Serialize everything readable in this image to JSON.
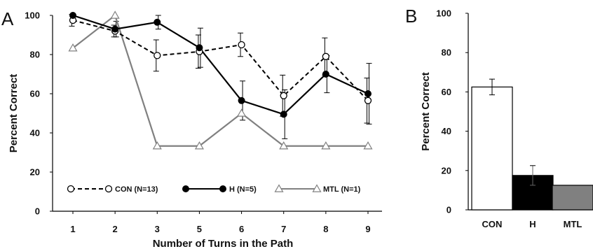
{
  "chart_data": [
    {
      "panel": "A",
      "type": "line",
      "xlabel": "Number of Turns in the Path",
      "ylabel": "Percent Correct",
      "categories": [
        "1",
        "2",
        "3",
        "5",
        "6",
        "7",
        "8",
        "9"
      ],
      "ylim": [
        0,
        100
      ],
      "yticks": [
        0,
        20,
        40,
        60,
        80,
        100
      ],
      "grid": false,
      "legend_position": "bottom",
      "series": [
        {
          "name": "CON (N=13)",
          "style": "dashed",
          "marker": "open-circle",
          "color": "#000000",
          "values": [
            97.5,
            92,
            79.5,
            81.5,
            85,
            59,
            79,
            56.5
          ],
          "errors": [
            3,
            3,
            8,
            8.5,
            6,
            10.5,
            9.5,
            11.5
          ]
        },
        {
          "name": "H (N=5)",
          "style": "solid",
          "marker": "filled-circle",
          "color": "#000000",
          "values": [
            100,
            93,
            96.5,
            83.5,
            56.5,
            49.5,
            70,
            60
          ],
          "errors": [
            0,
            4,
            3.5,
            10,
            10,
            12.5,
            9.5,
            15.5
          ]
        },
        {
          "name": "MTL (N=1)",
          "style": "solid",
          "marker": "open-triangle",
          "color": "#808080",
          "values": [
            83.3,
            100,
            33.3,
            33.3,
            50,
            33.3,
            33.3,
            33.3
          ],
          "errors": null
        }
      ]
    },
    {
      "panel": "B",
      "type": "bar",
      "ylabel": "Percent Correct",
      "categories": [
        "CON",
        "H",
        "MTL"
      ],
      "values": [
        62.5,
        17.5,
        12.5
      ],
      "errors": [
        4,
        5,
        0
      ],
      "colors": [
        "#ffffff",
        "#000000",
        "#808080"
      ],
      "ylim": [
        0,
        100
      ],
      "yticks": [
        0,
        20,
        40,
        60,
        80,
        100
      ],
      "grid": false
    }
  ]
}
